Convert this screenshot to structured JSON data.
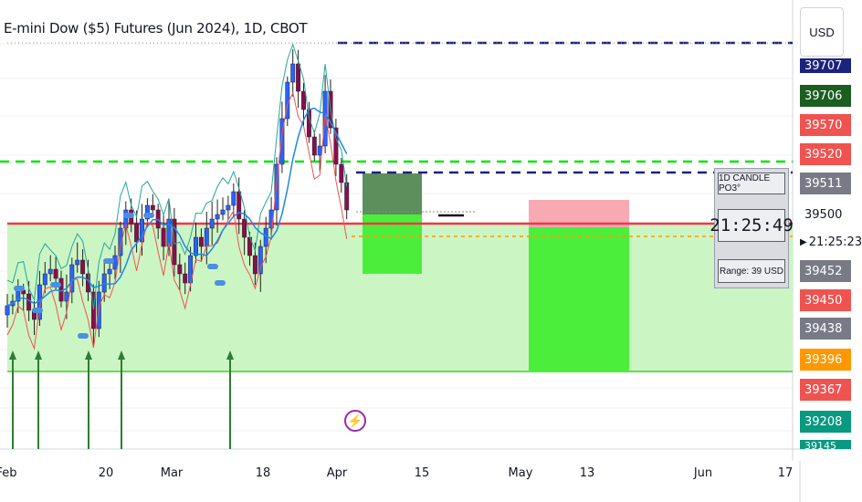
{
  "header": {
    "title": "E-mini Dow ($5) Futures (Jun 2024), 1D, CBOT"
  },
  "currency_button": {
    "label": "USD"
  },
  "price_scale": {
    "labels": [
      {
        "text": "39707",
        "bg": "#1a237e"
      },
      {
        "text": "39706",
        "bg": "#1b5e20"
      },
      {
        "text": "39570",
        "bg": "#ef5350"
      },
      {
        "text": "39520",
        "bg": "#ef5350"
      },
      {
        "text": "39511",
        "bg": "#787b86"
      },
      {
        "text": "39500",
        "bg": ""
      },
      {
        "text": "21:25:23",
        "bg": ""
      },
      {
        "text": "39452",
        "bg": "#787b86"
      },
      {
        "text": "39450",
        "bg": "#ef5350"
      },
      {
        "text": "39438",
        "bg": "#787b86"
      },
      {
        "text": "39396",
        "bg": "#ff9800"
      },
      {
        "text": "39367",
        "bg": "#ef5350"
      },
      {
        "text": "39208",
        "bg": "#089981"
      },
      {
        "text": "39145",
        "bg": "#089981"
      }
    ]
  },
  "time_axis": {
    "labels": [
      "Feb",
      "20",
      "Mar",
      "18",
      "Apr",
      "15",
      "May",
      "13",
      "Jun",
      "17"
    ]
  },
  "info_panel": {
    "title": "1D CANDLE PO3°",
    "timer": "21:25:49",
    "range": "Range: 39 USD"
  },
  "overlay_text": {
    "stacked_label": "39500"
  },
  "icons": {
    "bolt": "lightning-bolt-icon"
  },
  "colors": {
    "bull_candle": "#2962ff",
    "bear_candle": "#880e4f",
    "ma_line": "#1e88e5",
    "upper_band": "#26a69a",
    "lower_band": "#ef5350",
    "red_level": "#f23645",
    "green_dashed": "#00e600",
    "navy_dashed": "#1a237e",
    "orange_dashed": "#ff9800",
    "zone_fill": "#ccf5c4",
    "bright_green": "#4cee3c",
    "pink_zone": "#f8a9b2",
    "dark_green_box": "#5c8f5c"
  }
}
